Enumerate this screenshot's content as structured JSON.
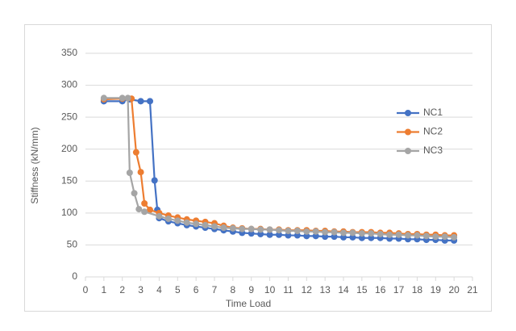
{
  "chart_data": {
    "type": "line",
    "x_label": "Time Load",
    "y_label": "Stiffness (kN/mm)",
    "xlim": [
      0,
      21
    ],
    "xticks": [
      0,
      1,
      2,
      3,
      4,
      5,
      6,
      7,
      8,
      9,
      10,
      11,
      12,
      13,
      14,
      15,
      16,
      17,
      18,
      19,
      20,
      21
    ],
    "ylim": [
      0,
      350
    ],
    "yticks": [
      0,
      50,
      100,
      150,
      200,
      250,
      300,
      350
    ],
    "grid": true,
    "legend": "right",
    "series": [
      {
        "name": "NC1",
        "color": "#4472c4",
        "x": [
          1,
          2,
          2.4,
          3,
          3.5,
          3.75,
          3.9,
          4,
          4.5,
          5,
          5.5,
          6,
          6.5,
          7,
          7.5,
          8,
          8.5,
          9,
          9.5,
          10,
          10.5,
          11,
          11.5,
          12,
          12.5,
          13,
          13.5,
          14,
          14.5,
          15,
          15.5,
          16,
          16.5,
          17,
          17.5,
          18,
          18.5,
          19,
          19.5,
          20
        ],
        "values": [
          275,
          275,
          278,
          275,
          275,
          151,
          105,
          92,
          87,
          84,
          81,
          79,
          77,
          75,
          73,
          71,
          69,
          68,
          67,
          66,
          66,
          65,
          65,
          64,
          64,
          63,
          63,
          62,
          62,
          61,
          61,
          61,
          60,
          60,
          59,
          59,
          58,
          58,
          57,
          57
        ]
      },
      {
        "name": "NC2",
        "color": "#ed7d31",
        "x": [
          1,
          2,
          2.5,
          2.75,
          3,
          3.2,
          3.5,
          4,
          4.5,
          5,
          5.5,
          6,
          6.5,
          7,
          7.5,
          8,
          8.5,
          9,
          9.5,
          10,
          10.5,
          11,
          11.5,
          12,
          12.5,
          13,
          13.5,
          14,
          14.5,
          15,
          15.5,
          16,
          16.5,
          17,
          17.5,
          18,
          18.5,
          19,
          19.5,
          20
        ],
        "values": [
          278,
          279,
          279,
          195,
          164,
          115,
          105,
          100,
          96,
          93,
          90,
          88,
          86,
          84,
          80,
          77,
          76,
          75,
          75,
          74,
          74,
          73,
          73,
          73,
          72,
          72,
          71,
          71,
          70,
          70,
          70,
          69,
          69,
          68,
          67,
          67,
          66,
          66,
          65,
          65
        ]
      },
      {
        "name": "NC3",
        "color": "#a5a5a5",
        "x": [
          1,
          2,
          2.3,
          2.4,
          2.65,
          2.9,
          3.2,
          4,
          4.5,
          5,
          5.5,
          6,
          6.5,
          7,
          7.5,
          8,
          8.5,
          9,
          9.5,
          10,
          10.5,
          11,
          11.5,
          12,
          12.5,
          13,
          13.5,
          14,
          14.5,
          15,
          15.5,
          16,
          16.5,
          17,
          17.5,
          18,
          18.5,
          19,
          19.5,
          20
        ],
        "values": [
          280,
          280,
          280,
          163,
          131,
          106,
          102,
          95,
          91,
          88,
          85,
          83,
          81,
          79,
          77,
          76,
          75,
          75,
          74,
          74,
          73,
          72,
          72,
          71,
          71,
          70,
          70,
          69,
          69,
          68,
          68,
          67,
          66,
          66,
          65,
          65,
          64,
          63,
          63,
          62
        ]
      }
    ]
  }
}
